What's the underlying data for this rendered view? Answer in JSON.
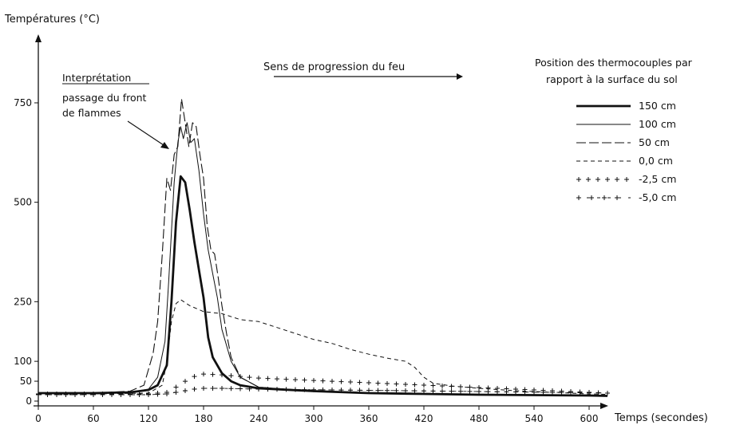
{
  "chart_data": {
    "type": "line",
    "ylabel": "Températures (°C)",
    "xlabel": "Temps (secondes)",
    "x_ticks": [
      0,
      60,
      120,
      180,
      240,
      300,
      360,
      420,
      480,
      540,
      600
    ],
    "y_ticks": [
      0,
      50,
      100,
      250,
      500,
      750
    ],
    "xlim": [
      0,
      640
    ],
    "ylim": [
      0,
      800
    ],
    "grid": false,
    "legend_title": "Position des thermocouples par rapport à la surface du sol",
    "legend_placement": "top-right",
    "annotation_title": "Interprétation",
    "annotation_text": [
      "passage du front",
      "de flammes"
    ],
    "arrow_label": "Sens de progression du feu",
    "series": [
      {
        "name": "150 cm",
        "style": "thick",
        "points": [
          [
            0,
            20
          ],
          [
            60,
            20
          ],
          [
            100,
            22
          ],
          [
            120,
            28
          ],
          [
            130,
            40
          ],
          [
            140,
            90
          ],
          [
            145,
            250
          ],
          [
            150,
            450
          ],
          [
            155,
            565
          ],
          [
            160,
            550
          ],
          [
            165,
            480
          ],
          [
            170,
            400
          ],
          [
            175,
            330
          ],
          [
            180,
            260
          ],
          [
            185,
            160
          ],
          [
            190,
            110
          ],
          [
            200,
            70
          ],
          [
            210,
            50
          ],
          [
            220,
            40
          ],
          [
            240,
            32
          ],
          [
            300,
            25
          ],
          [
            360,
            20
          ],
          [
            420,
            18
          ],
          [
            480,
            16
          ],
          [
            540,
            15
          ],
          [
            600,
            14
          ],
          [
            620,
            13
          ]
        ]
      },
      {
        "name": "100 cm",
        "style": "thin",
        "points": [
          [
            0,
            20
          ],
          [
            60,
            20
          ],
          [
            100,
            22
          ],
          [
            120,
            30
          ],
          [
            130,
            60
          ],
          [
            138,
            150
          ],
          [
            142,
            300
          ],
          [
            148,
            550
          ],
          [
            152,
            650
          ],
          [
            155,
            690
          ],
          [
            158,
            660
          ],
          [
            162,
            700
          ],
          [
            166,
            650
          ],
          [
            170,
            660
          ],
          [
            175,
            580
          ],
          [
            180,
            470
          ],
          [
            185,
            380
          ],
          [
            190,
            320
          ],
          [
            195,
            260
          ],
          [
            200,
            180
          ],
          [
            210,
            100
          ],
          [
            220,
            60
          ],
          [
            240,
            35
          ],
          [
            300,
            25
          ],
          [
            360,
            20
          ],
          [
            420,
            18
          ],
          [
            480,
            16
          ],
          [
            540,
            15
          ],
          [
            600,
            14
          ],
          [
            620,
            13
          ]
        ]
      },
      {
        "name": "50 cm",
        "style": "longdash",
        "points": [
          [
            0,
            20
          ],
          [
            60,
            20
          ],
          [
            100,
            25
          ],
          [
            115,
            40
          ],
          [
            125,
            120
          ],
          [
            130,
            200
          ],
          [
            135,
            370
          ],
          [
            140,
            560
          ],
          [
            144,
            530
          ],
          [
            148,
            620
          ],
          [
            152,
            640
          ],
          [
            156,
            760
          ],
          [
            160,
            700
          ],
          [
            164,
            640
          ],
          [
            168,
            700
          ],
          [
            172,
            690
          ],
          [
            176,
            620
          ],
          [
            180,
            560
          ],
          [
            184,
            440
          ],
          [
            188,
            380
          ],
          [
            192,
            370
          ],
          [
            196,
            310
          ],
          [
            200,
            240
          ],
          [
            205,
            170
          ],
          [
            210,
            110
          ],
          [
            220,
            60
          ],
          [
            240,
            35
          ],
          [
            300,
            25
          ],
          [
            360,
            20
          ],
          [
            420,
            18
          ],
          [
            480,
            16
          ],
          [
            540,
            15
          ],
          [
            600,
            14
          ],
          [
            620,
            13
          ]
        ]
      },
      {
        "name": "0,0 cm",
        "style": "shortdash",
        "points": [
          [
            0,
            18
          ],
          [
            60,
            18
          ],
          [
            120,
            20
          ],
          [
            135,
            40
          ],
          [
            140,
            100
          ],
          [
            145,
            200
          ],
          [
            150,
            245
          ],
          [
            155,
            255
          ],
          [
            165,
            240
          ],
          [
            180,
            225
          ],
          [
            200,
            220
          ],
          [
            220,
            205
          ],
          [
            240,
            200
          ],
          [
            260,
            185
          ],
          [
            280,
            170
          ],
          [
            300,
            155
          ],
          [
            320,
            145
          ],
          [
            340,
            130
          ],
          [
            360,
            118
          ],
          [
            380,
            108
          ],
          [
            400,
            100
          ],
          [
            410,
            85
          ],
          [
            420,
            60
          ],
          [
            430,
            45
          ],
          [
            450,
            38
          ],
          [
            480,
            32
          ],
          [
            520,
            26
          ],
          [
            560,
            22
          ],
          [
            600,
            18
          ],
          [
            620,
            17
          ]
        ]
      },
      {
        "name": "-2,5 cm",
        "style": "plus",
        "points": [
          [
            0,
            18
          ],
          [
            60,
            18
          ],
          [
            120,
            18
          ],
          [
            140,
            22
          ],
          [
            150,
            35
          ],
          [
            160,
            50
          ],
          [
            170,
            62
          ],
          [
            180,
            68
          ],
          [
            200,
            66
          ],
          [
            220,
            62
          ],
          [
            240,
            58
          ],
          [
            260,
            56
          ],
          [
            280,
            54
          ],
          [
            300,
            52
          ],
          [
            320,
            50
          ],
          [
            340,
            48
          ],
          [
            360,
            46
          ],
          [
            380,
            44
          ],
          [
            400,
            42
          ],
          [
            420,
            40
          ],
          [
            440,
            38
          ],
          [
            460,
            36
          ],
          [
            480,
            34
          ],
          [
            500,
            32
          ],
          [
            520,
            30
          ],
          [
            540,
            28
          ],
          [
            560,
            26
          ],
          [
            580,
            24
          ],
          [
            600,
            22
          ],
          [
            620,
            20
          ]
        ]
      },
      {
        "name": "-5,0 cm",
        "style": "plusdash",
        "points": [
          [
            0,
            16
          ],
          [
            60,
            16
          ],
          [
            120,
            16
          ],
          [
            140,
            18
          ],
          [
            150,
            22
          ],
          [
            160,
            26
          ],
          [
            170,
            30
          ],
          [
            180,
            32
          ],
          [
            200,
            32
          ],
          [
            220,
            31
          ],
          [
            240,
            30
          ],
          [
            280,
            29
          ],
          [
            320,
            28
          ],
          [
            360,
            27
          ],
          [
            400,
            26
          ],
          [
            440,
            25
          ],
          [
            480,
            24
          ],
          [
            520,
            23
          ],
          [
            560,
            22
          ],
          [
            600,
            21
          ],
          [
            620,
            20
          ]
        ]
      }
    ]
  }
}
